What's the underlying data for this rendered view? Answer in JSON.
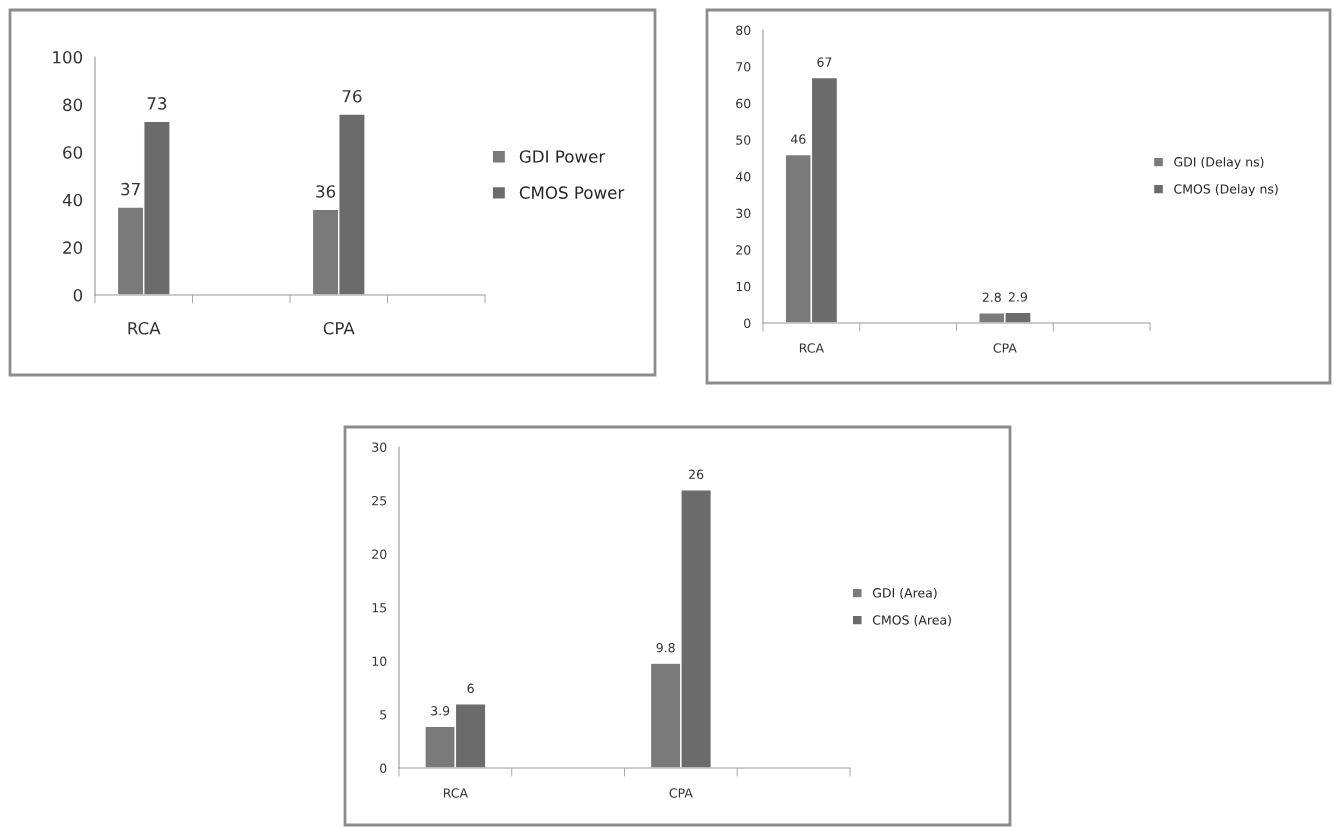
{
  "chart_data": [
    {
      "type": "bar",
      "categories": [
        "RCA",
        null,
        "CPA",
        null
      ],
      "ylim": [
        0,
        100
      ],
      "yticks": [
        0,
        20,
        40,
        60,
        80,
        100
      ],
      "data_labels": true,
      "legend": "right",
      "grid": false,
      "series": [
        {
          "name": "GDI Power",
          "color": "#7a7a7a",
          "values": [
            37,
            null,
            36,
            null
          ]
        },
        {
          "name": "CMOS Power",
          "color": "#6b6b6b",
          "values": [
            73,
            null,
            76,
            null
          ]
        }
      ]
    },
    {
      "type": "bar",
      "categories": [
        "RCA",
        null,
        "CPA",
        null
      ],
      "ylim": [
        0,
        80
      ],
      "yticks": [
        0,
        10,
        20,
        30,
        40,
        50,
        60,
        70,
        80
      ],
      "data_labels": true,
      "legend": "right",
      "grid": false,
      "series": [
        {
          "name": "GDI (Delay ns)",
          "color": "#7a7a7a",
          "values": [
            46,
            null,
            2.8,
            null
          ]
        },
        {
          "name": "CMOS (Delay ns)",
          "color": "#6b6b6b",
          "values": [
            67,
            null,
            2.9,
            null
          ]
        }
      ]
    },
    {
      "type": "bar",
      "categories": [
        "RCA",
        null,
        "CPA",
        null
      ],
      "ylim": [
        0,
        30
      ],
      "yticks": [
        0,
        5,
        10,
        15,
        20,
        25,
        30
      ],
      "data_labels": true,
      "legend": "right",
      "grid": false,
      "series": [
        {
          "name": "GDI (Area)",
          "color": "#7a7a7a",
          "values": [
            3.9,
            null,
            9.8,
            null
          ]
        },
        {
          "name": "CMOS (Area)",
          "color": "#6b6b6b",
          "values": [
            6,
            null,
            26,
            null
          ]
        }
      ]
    }
  ]
}
